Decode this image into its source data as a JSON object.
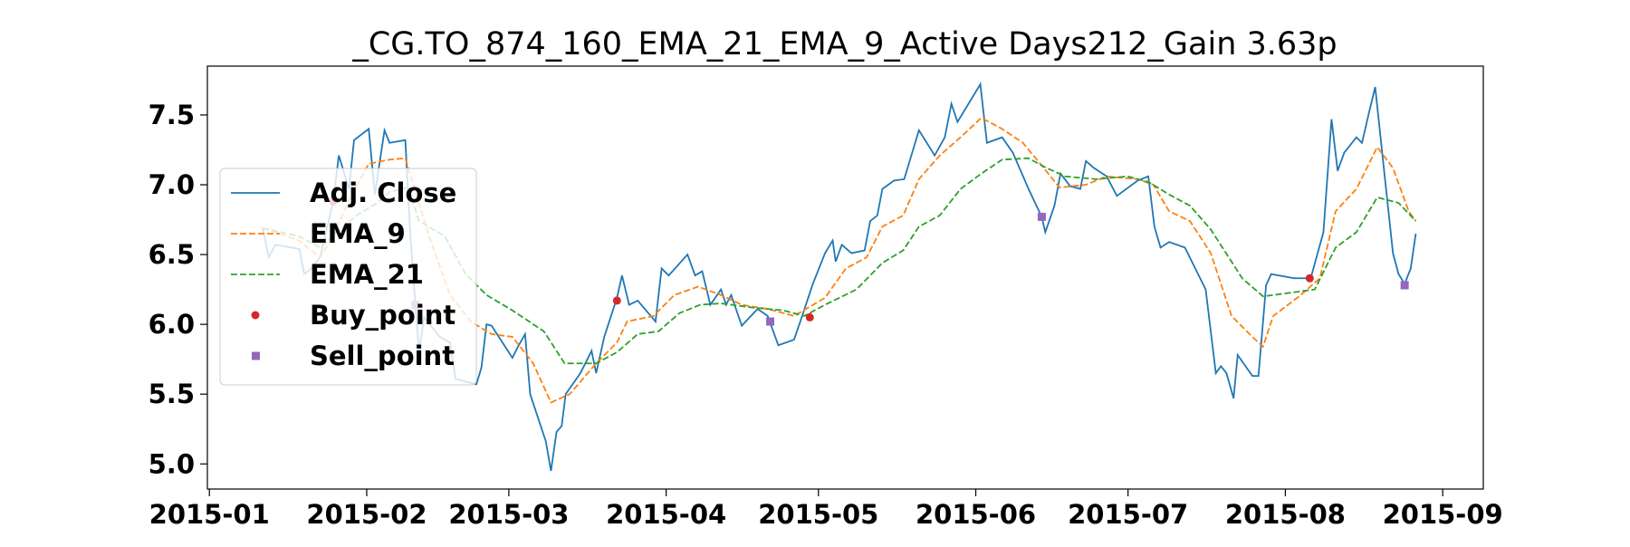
{
  "chart_data": {
    "type": "line",
    "title": "_CG.TO_874_160_EMA_21_EMA_9_Active Days212_Gain   3.63p",
    "xlim": [
      -0.4,
      251
    ],
    "ylim": [
      4.82,
      7.85
    ],
    "xticks": [
      {
        "value": 0,
        "label": "2015-01"
      },
      {
        "value": 31,
        "label": "2015-02"
      },
      {
        "value": 59,
        "label": "2015-03"
      },
      {
        "value": 90,
        "label": "2015-04"
      },
      {
        "value": 120,
        "label": "2015-05"
      },
      {
        "value": 151,
        "label": "2015-06"
      },
      {
        "value": 181,
        "label": "2015-07"
      },
      {
        "value": 212,
        "label": "2015-08"
      },
      {
        "value": 243,
        "label": "2015-09"
      }
    ],
    "yticks": [
      {
        "value": 5,
        "label": "5.0"
      },
      5.5,
      {
        "value": 6,
        "label": "6.0"
      },
      6.5,
      {
        "value": 7,
        "label": "7.0"
      },
      7.5
    ],
    "legend": "center left",
    "series": [
      {
        "name": "Adj. Close",
        "color": "#1f77b4",
        "kind": "line",
        "dash": "solid",
        "x": [
          10.5,
          11.7,
          13.0,
          17.7,
          18.7,
          20.1,
          21.8,
          24.4,
          25.5,
          27.5,
          28.5,
          31.4,
          32.6,
          34.5,
          35.5,
          38.6,
          39.6,
          40.6,
          41.3,
          42.3,
          45.4,
          47.4,
          48.5,
          50.5,
          52.6,
          53.6,
          54.6,
          55.6,
          59.7,
          60.8,
          62.2,
          63.2,
          66.3,
          67.3,
          68.4,
          69.4,
          70.2,
          73.1,
          75.3,
          76.2,
          77.8,
          80.3,
          81.3,
          82.7,
          84.4,
          87.9,
          89.1,
          90.5,
          94.2,
          95.7,
          97.1,
          98.7,
          100.8,
          101.8,
          102.8,
          104.9,
          108.0,
          110.0,
          112.1,
          115.2,
          116.8,
          118.9,
          121.3,
          122.8,
          123.4,
          124.6,
          126.5,
          129.1,
          130.2,
          131.6,
          132.6,
          134.9,
          136.9,
          139.8,
          142.9,
          144.9,
          146.2,
          147.4,
          151.9,
          153.2,
          156.2,
          158.3,
          161.4,
          164.0,
          164.7,
          166.5,
          167.7,
          169.6,
          171.6,
          172.7,
          174.3,
          176.8,
          178.8,
          182.9,
          185.0,
          186.2,
          187.4,
          189.1,
          192.2,
          194.8,
          196.3,
          198.3,
          199.3,
          200.4,
          201.8,
          202.6,
          205.5,
          206.7,
          208.2,
          209.2,
          213.7,
          217.0,
          219.5,
          221.1,
          222.3,
          223.6,
          226.0,
          227.1,
          228.5,
          229.7,
          231.4,
          233.2,
          234.3,
          235.5,
          236.7,
          237.7
        ],
        "values": [
          6.69,
          6.48,
          6.57,
          6.54,
          6.36,
          6.4,
          6.48,
          6.88,
          7.21,
          6.97,
          7.32,
          7.4,
          6.93,
          7.39,
          7.3,
          7.32,
          6.63,
          6.14,
          5.8,
          6.05,
          5.91,
          5.87,
          5.61,
          5.59,
          5.57,
          5.69,
          6.0,
          5.99,
          5.76,
          5.84,
          5.93,
          5.5,
          5.16,
          4.95,
          5.23,
          5.27,
          5.5,
          5.65,
          5.81,
          5.65,
          5.91,
          6.19,
          6.35,
          6.14,
          6.17,
          6.02,
          6.4,
          6.35,
          6.5,
          6.35,
          6.38,
          6.14,
          6.25,
          6.14,
          6.21,
          5.99,
          6.11,
          6.06,
          5.85,
          5.89,
          6.06,
          6.29,
          6.51,
          6.6,
          6.45,
          6.57,
          6.51,
          6.53,
          6.74,
          6.78,
          6.97,
          7.03,
          7.04,
          7.39,
          7.21,
          7.34,
          7.58,
          7.45,
          7.72,
          7.3,
          7.34,
          7.23,
          6.97,
          6.77,
          6.66,
          6.85,
          7.08,
          6.99,
          6.97,
          7.17,
          7.12,
          7.06,
          6.92,
          7.03,
          7.06,
          6.7,
          6.55,
          6.59,
          6.55,
          6.36,
          6.25,
          5.65,
          5.7,
          5.65,
          5.47,
          5.78,
          5.63,
          5.63,
          6.28,
          6.36,
          6.33,
          6.33,
          6.66,
          7.47,
          7.1,
          7.23,
          7.34,
          7.3,
          7.52,
          7.7,
          7.12,
          6.51,
          6.36,
          6.29,
          6.4,
          6.65
        ]
      },
      {
        "name": "EMA_9",
        "color": "#ff7f0e",
        "kind": "line",
        "dash": "dashed",
        "x": [
          10.5,
          17.7,
          21.8,
          24.4,
          27.5,
          31.4,
          35.5,
          38.6,
          40.2,
          43.3,
          47.4,
          51.5,
          55.6,
          59.7,
          63.8,
          67.3,
          71.0,
          76.2,
          80.3,
          82.3,
          87.5,
          91.6,
          96.3,
          100.8,
          104.9,
          110.0,
          115.2,
          121.3,
          125.4,
          129.5,
          132.6,
          136.7,
          139.8,
          143.9,
          148.0,
          152.1,
          156.2,
          160.3,
          164.4,
          167.5,
          172.7,
          176.8,
          182.9,
          186.0,
          189.1,
          193.2,
          197.3,
          201.4,
          205.5,
          207.6,
          209.6,
          214.7,
          218.8,
          221.9,
          226.0,
          230.1,
          233.2,
          236.3,
          237.7
        ],
        "values": [
          6.69,
          6.6,
          6.48,
          6.63,
          6.89,
          7.15,
          7.18,
          7.19,
          7.0,
          6.63,
          6.21,
          6.02,
          5.93,
          5.91,
          5.72,
          5.44,
          5.5,
          5.72,
          5.87,
          6.02,
          6.06,
          6.21,
          6.27,
          6.21,
          6.14,
          6.11,
          6.06,
          6.19,
          6.4,
          6.48,
          6.7,
          6.78,
          7.04,
          7.21,
          7.34,
          7.48,
          7.4,
          7.3,
          7.12,
          6.98,
          7.0,
          7.06,
          7.04,
          7.0,
          6.81,
          6.74,
          6.51,
          6.06,
          5.91,
          5.84,
          6.06,
          6.2,
          6.33,
          6.81,
          6.97,
          7.27,
          7.12,
          6.81,
          6.74
        ]
      },
      {
        "name": "EMA_21",
        "color": "#2ca02c",
        "kind": "line",
        "dash": "dashed",
        "x": [
          10.5,
          17.7,
          21.8,
          24.8,
          29.0,
          33.1,
          35.5,
          39.2,
          41.3,
          46.4,
          50.5,
          54.6,
          59.7,
          65.9,
          70.0,
          76.2,
          80.3,
          84.4,
          88.5,
          92.6,
          96.7,
          100.8,
          107.0,
          113.1,
          117.2,
          121.3,
          127.5,
          132.6,
          136.7,
          139.8,
          143.9,
          148.0,
          152.1,
          156.2,
          161.4,
          164.4,
          168.6,
          174.7,
          180.9,
          185.0,
          189.1,
          193.2,
          197.3,
          203.5,
          207.6,
          211.7,
          217.8,
          221.9,
          226.0,
          230.1,
          234.3,
          237.7
        ],
        "values": [
          6.69,
          6.63,
          6.55,
          6.65,
          6.78,
          6.87,
          6.95,
          6.98,
          6.74,
          6.63,
          6.36,
          6.21,
          6.1,
          5.95,
          5.72,
          5.72,
          5.8,
          5.93,
          5.95,
          6.08,
          6.14,
          6.15,
          6.12,
          6.1,
          6.06,
          6.14,
          6.25,
          6.44,
          6.53,
          6.7,
          6.78,
          6.97,
          7.08,
          7.18,
          7.19,
          7.13,
          7.06,
          7.04,
          7.06,
          7.02,
          6.93,
          6.85,
          6.68,
          6.33,
          6.2,
          6.22,
          6.25,
          6.55,
          6.66,
          6.91,
          6.87,
          6.74
        ]
      },
      {
        "name": "Buy_point",
        "color": "#d62728",
        "kind": "scatter",
        "marker": "circle",
        "x": [
          24.4,
          80.3,
          118.3,
          216.8
        ],
        "values": [
          6.88,
          6.17,
          6.05,
          6.33
        ]
      },
      {
        "name": "Sell_point",
        "color": "#9467bd",
        "kind": "scatter",
        "marker": "square",
        "x": [
          40.6,
          110.5,
          164.0,
          235.5
        ],
        "values": [
          6.14,
          6.02,
          6.77,
          6.28
        ]
      }
    ]
  }
}
